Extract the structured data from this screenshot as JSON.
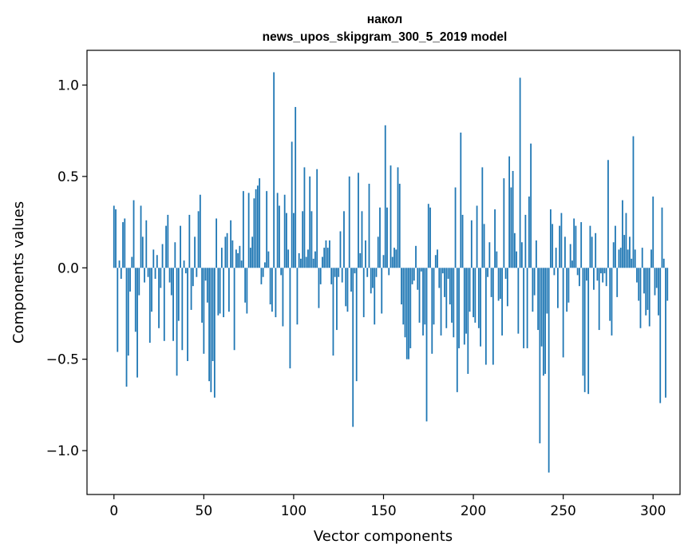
{
  "chart_data": {
    "type": "bar",
    "title_line1": "накол",
    "title_line2": "news_upos_skipgram_300_5_2019 model",
    "xlabel": "Vector components",
    "ylabel": "Components values",
    "xlim": [
      -15,
      315
    ],
    "ylim": [
      -1.24,
      1.19
    ],
    "xticks": [
      0,
      50,
      100,
      150,
      200,
      250,
      300
    ],
    "xtick_labels": [
      "0",
      "50",
      "100",
      "150",
      "200",
      "250",
      "300"
    ],
    "yticks": [
      -1.0,
      -0.5,
      0.0,
      0.5,
      1.0
    ],
    "ytick_labels": [
      "−1.0",
      "−0.5",
      "0.0",
      "0.5",
      "1.0"
    ],
    "bar_color": "#1f77b4",
    "values": [
      0.34,
      0.32,
      -0.46,
      0.04,
      -0.06,
      0.25,
      0.27,
      -0.65,
      -0.48,
      -0.13,
      0.06,
      0.37,
      -0.35,
      -0.6,
      -0.15,
      0.34,
      0.17,
      -0.08,
      0.26,
      -0.05,
      -0.41,
      -0.24,
      0.1,
      -0.06,
      0.07,
      -0.33,
      -0.11,
      0.13,
      -0.4,
      0.23,
      0.29,
      -0.08,
      -0.15,
      -0.4,
      0.14,
      -0.59,
      -0.29,
      0.23,
      -0.45,
      0.04,
      -0.03,
      -0.51,
      0.29,
      -0.23,
      -0.1,
      0.17,
      -0.05,
      0.31,
      0.4,
      -0.3,
      -0.47,
      -0.07,
      -0.19,
      -0.62,
      -0.68,
      -0.51,
      -0.71,
      0.27,
      -0.26,
      -0.25,
      0.11,
      -0.27,
      0.17,
      0.19,
      -0.24,
      0.26,
      0.15,
      -0.45,
      0.1,
      0.08,
      0.12,
      0.04,
      0.42,
      -0.19,
      -0.25,
      0.41,
      0.11,
      0.17,
      0.38,
      0.43,
      0.45,
      0.49,
      -0.09,
      -0.05,
      0.03,
      0.42,
      0.09,
      -0.2,
      -0.24,
      1.07,
      -0.27,
      0.41,
      0.34,
      -0.04,
      -0.32,
      0.4,
      0.3,
      0.1,
      -0.55,
      0.69,
      0.3,
      0.88,
      -0.31,
      0.08,
      0.05,
      0.31,
      0.55,
      0.06,
      0.1,
      0.5,
      0.31,
      0.05,
      0.09,
      0.54,
      -0.22,
      -0.09,
      0.06,
      0.11,
      0.15,
      0.11,
      0.15,
      -0.09,
      -0.48,
      -0.05,
      -0.34,
      -0.05,
      0.2,
      -0.08,
      0.31,
      -0.21,
      -0.24,
      0.5,
      -0.13,
      -0.87,
      -0.03,
      -0.62,
      0.52,
      0.08,
      0.31,
      -0.27,
      0.15,
      -0.05,
      0.46,
      -0.14,
      -0.11,
      -0.31,
      -0.05,
      0.17,
      0.33,
      -0.25,
      0.07,
      0.78,
      0.33,
      -0.04,
      0.56,
      0.06,
      0.11,
      0.1,
      0.55,
      0.46,
      -0.2,
      -0.31,
      -0.38,
      -0.5,
      -0.5,
      -0.44,
      -0.09,
      -0.07,
      0.12,
      -0.12,
      -0.3,
      -0.02,
      -0.37,
      -0.31,
      -0.84,
      0.35,
      0.33,
      -0.47,
      -0.31,
      0.07,
      0.1,
      -0.11,
      -0.37,
      -0.03,
      -0.16,
      -0.33,
      -0.06,
      -0.2,
      -0.3,
      -0.38,
      0.44,
      -0.68,
      -0.44,
      0.74,
      0.29,
      -0.42,
      -0.36,
      -0.58,
      -0.24,
      0.26,
      -0.27,
      -0.3,
      0.34,
      -0.33,
      -0.43,
      0.55,
      0.24,
      -0.53,
      -0.05,
      0.14,
      -0.16,
      -0.53,
      0.32,
      0.09,
      -0.18,
      -0.17,
      -0.37,
      0.49,
      -0.06,
      -0.21,
      0.61,
      0.44,
      0.53,
      0.19,
      0.09,
      -0.36,
      1.04,
      0.14,
      -0.44,
      0.29,
      -0.44,
      0.39,
      0.68,
      -0.24,
      -0.15,
      0.15,
      -0.34,
      -0.96,
      -0.43,
      -0.59,
      -0.58,
      -0.25,
      -1.12,
      0.32,
      0.24,
      -0.04,
      0.11,
      -0.22,
      0.23,
      0.3,
      -0.49,
      0.17,
      -0.24,
      -0.19,
      0.13,
      0.04,
      0.27,
      0.23,
      -0.04,
      -0.1,
      0.25,
      -0.59,
      -0.68,
      -0.07,
      -0.69,
      0.23,
      0.17,
      -0.12,
      0.19,
      -0.07,
      -0.34,
      -0.03,
      -0.08,
      -0.03,
      -0.1,
      0.59,
      -0.29,
      -0.37,
      0.14,
      0.23,
      -0.16,
      0.1,
      0.11,
      0.37,
      0.18,
      0.3,
      0.1,
      0.17,
      0.05,
      0.72,
      0.1,
      -0.08,
      -0.18,
      -0.33,
      0.11,
      -0.14,
      -0.26,
      -0.23,
      -0.32,
      0.1,
      0.39,
      -0.15,
      -0.11,
      -0.26,
      -0.74,
      0.33,
      0.05,
      -0.71,
      -0.18
    ]
  }
}
